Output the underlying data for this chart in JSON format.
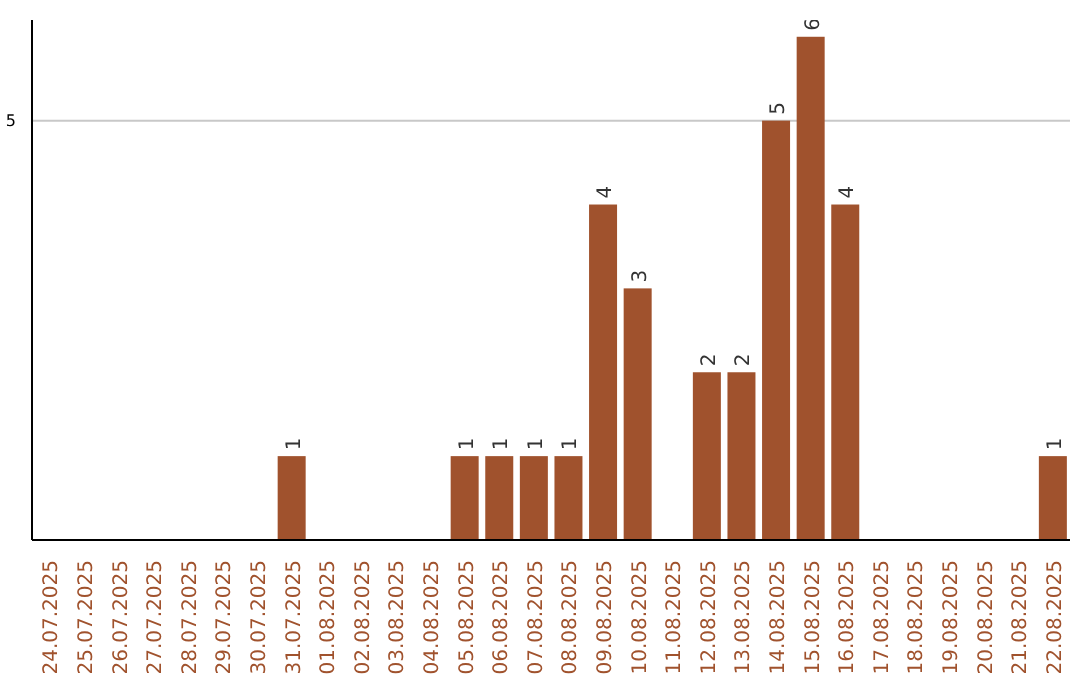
{
  "chart_data": {
    "type": "bar",
    "categories": [
      "24.07.2025",
      "25.07.2025",
      "26.07.2025",
      "27.07.2025",
      "28.07.2025",
      "29.07.2025",
      "30.07.2025",
      "31.07.2025",
      "01.08.2025",
      "02.08.2025",
      "03.08.2025",
      "04.08.2025",
      "05.08.2025",
      "06.08.2025",
      "07.08.2025",
      "08.08.2025",
      "09.08.2025",
      "10.08.2025",
      "11.08.2025",
      "12.08.2025",
      "13.08.2025",
      "14.08.2025",
      "15.08.2025",
      "16.08.2025",
      "17.08.2025",
      "18.08.2025",
      "19.08.2025",
      "20.08.2025",
      "21.08.2025",
      "22.08.2025"
    ],
    "values": [
      0,
      0,
      0,
      0,
      0,
      0,
      0,
      1,
      0,
      0,
      0,
      0,
      1,
      1,
      1,
      1,
      4,
      3,
      0,
      2,
      2,
      5,
      6,
      4,
      0,
      0,
      0,
      0,
      0,
      1
    ],
    "value_labels": [
      null,
      null,
      null,
      null,
      null,
      null,
      null,
      "1",
      null,
      null,
      null,
      null,
      "1",
      "1",
      "1",
      "1",
      "4",
      "3",
      null,
      "2",
      "2",
      "5",
      "6",
      "4",
      null,
      null,
      null,
      null,
      null,
      "1"
    ],
    "color": "#a0522d",
    "ylim": [
      0,
      6.2
    ],
    "yticks": [
      5
    ],
    "grid": "y"
  }
}
